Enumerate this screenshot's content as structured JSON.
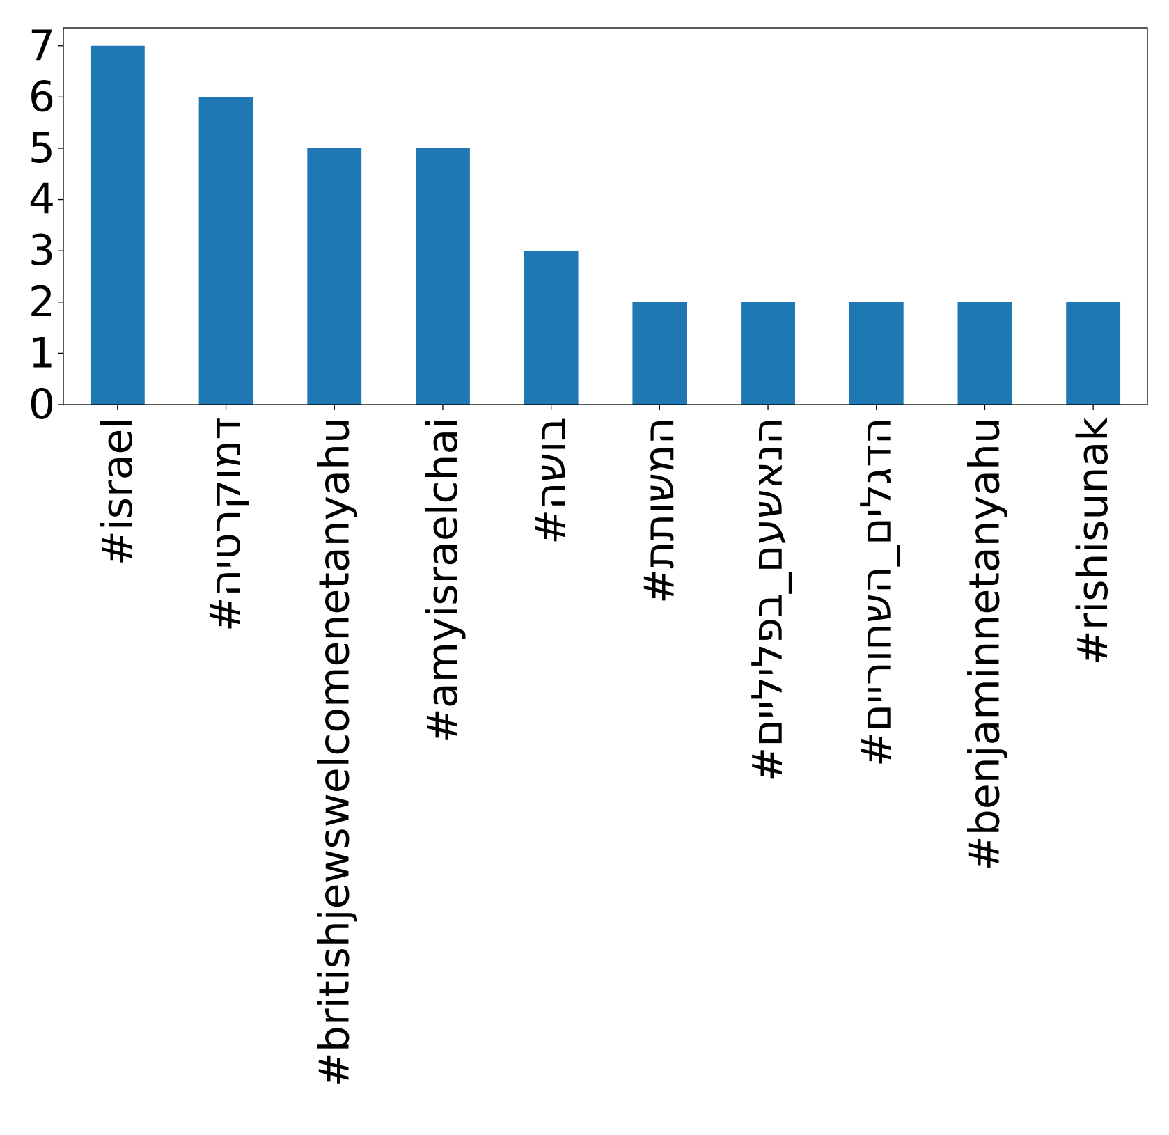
{
  "chart_data": {
    "type": "bar",
    "title": "",
    "xlabel": "",
    "ylabel": "",
    "categories": [
      "#israel",
      "#דמוקרטיה",
      "#britishjewswelcomenetanyahu",
      "#amyisraelchai",
      "#בושה",
      "#המשותת",
      "#הנאשעם_בפליליים",
      "#הדגלים_השחוריים",
      "#benjaminnetanyahu",
      "#rishisunak"
    ],
    "values": [
      7,
      6,
      5,
      5,
      3,
      2,
      2,
      2,
      2,
      2
    ],
    "ylim": [
      0,
      7.35
    ],
    "yticks": [
      0,
      1,
      2,
      3,
      4,
      5,
      6,
      7
    ],
    "grid": false,
    "legend": "none",
    "bar_color": "#1f77b4"
  }
}
